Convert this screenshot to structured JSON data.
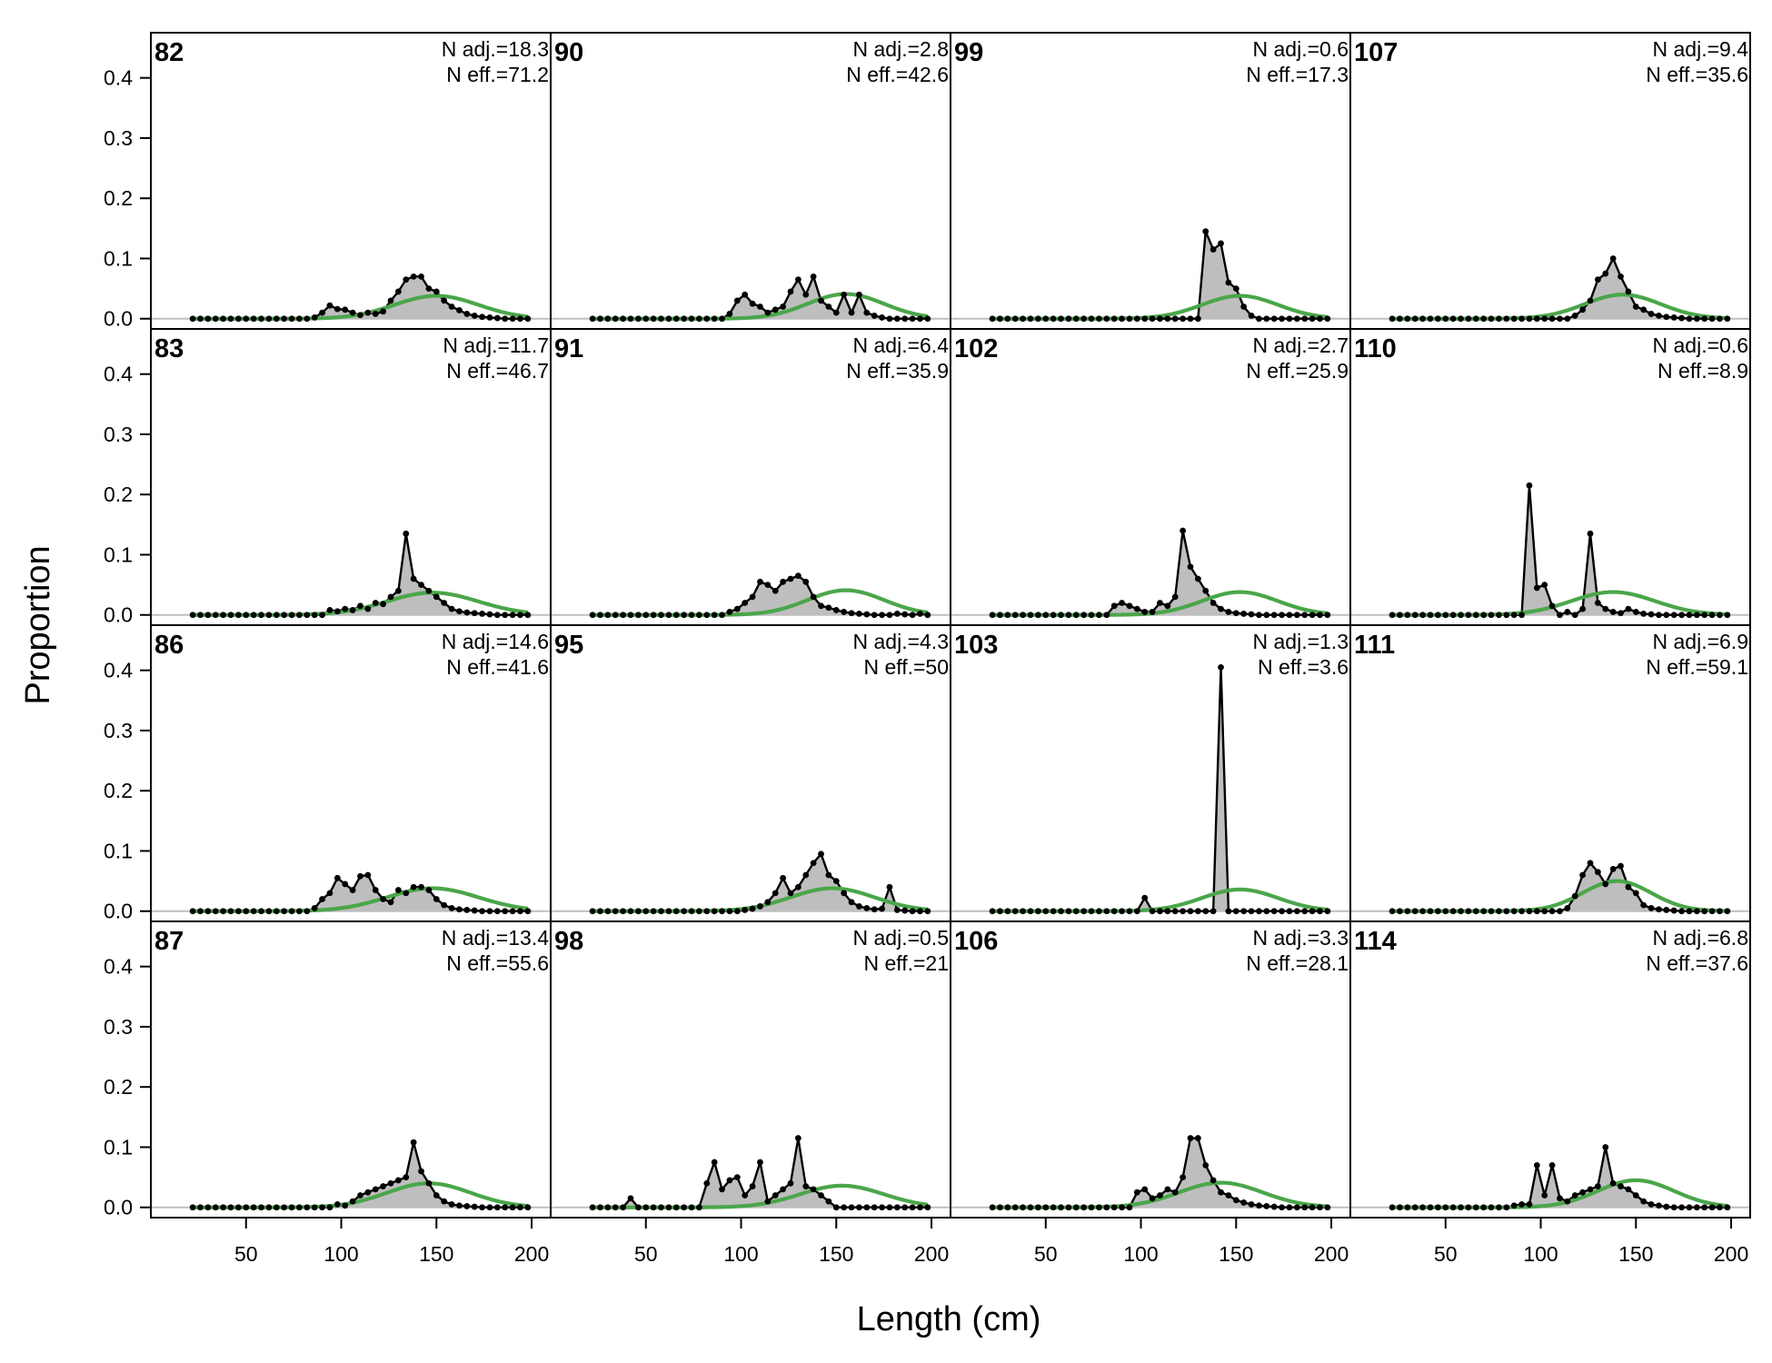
{
  "chart_data": {
    "type": "area",
    "xlabel": "Length (cm)",
    "ylabel": "Proportion",
    "xlim": [
      0,
      210
    ],
    "ylim": [
      -0.017,
      0.475
    ],
    "xticks": [
      50,
      100,
      150,
      200
    ],
    "yticks": [
      0.0,
      0.1,
      0.2,
      0.3,
      0.4
    ],
    "layout": {
      "rows": 4,
      "cols": 4,
      "order": "column-major"
    },
    "colors": {
      "observed_fill": "#bebebe",
      "observed_line": "#000000",
      "expected": "#4aa64a",
      "zero_line": "#bfbfbf"
    },
    "x": [
      22,
      26,
      30,
      34,
      38,
      42,
      46,
      50,
      54,
      58,
      62,
      66,
      70,
      74,
      78,
      82,
      86,
      90,
      94,
      98,
      102,
      106,
      110,
      114,
      118,
      122,
      126,
      130,
      134,
      138,
      142,
      146,
      150,
      154,
      158,
      162,
      166,
      170,
      174,
      178,
      182,
      186,
      190,
      194,
      198
    ],
    "panels": [
      {
        "label": "82",
        "n_adj": "N adj.=18.3",
        "n_eff": "N eff.=71.2",
        "observed": [
          0,
          0,
          0,
          0,
          0,
          0,
          0,
          0,
          0,
          0,
          0,
          0,
          0,
          0,
          0,
          0,
          0.002,
          0.01,
          0.022,
          0.016,
          0.015,
          0.01,
          0.006,
          0.01,
          0.008,
          0.012,
          0.03,
          0.045,
          0.065,
          0.07,
          0.07,
          0.05,
          0.045,
          0.03,
          0.02,
          0.014,
          0.008,
          0.005,
          0.003,
          0.002,
          0.001,
          0,
          0,
          0,
          0
        ],
        "expected": {
          "mu": 150,
          "sd": 22,
          "peak": 0.038
        }
      },
      {
        "label": "83",
        "n_adj": "N adj.=11.7",
        "n_eff": "N eff.=46.7",
        "observed": [
          0,
          0,
          0,
          0,
          0,
          0,
          0,
          0,
          0,
          0,
          0,
          0,
          0,
          0,
          0,
          0,
          0,
          0,
          0.008,
          0.006,
          0.01,
          0.008,
          0.015,
          0.01,
          0.02,
          0.018,
          0.03,
          0.04,
          0.135,
          0.06,
          0.05,
          0.04,
          0.03,
          0.02,
          0.01,
          0.006,
          0.004,
          0.003,
          0.002,
          0.001,
          0,
          0,
          0,
          0,
          0
        ],
        "expected": {
          "mu": 148,
          "sd": 24,
          "peak": 0.037
        }
      },
      {
        "label": "86",
        "n_adj": "N adj.=14.6",
        "n_eff": "N eff.=41.6",
        "observed": [
          0,
          0,
          0,
          0,
          0,
          0,
          0,
          0,
          0,
          0,
          0,
          0,
          0,
          0,
          0,
          0,
          0.005,
          0.02,
          0.03,
          0.055,
          0.045,
          0.035,
          0.058,
          0.06,
          0.035,
          0.02,
          0.015,
          0.035,
          0.03,
          0.04,
          0.04,
          0.035,
          0.02,
          0.01,
          0.005,
          0.003,
          0.002,
          0.001,
          0,
          0,
          0,
          0,
          0,
          0,
          0
        ],
        "expected": {
          "mu": 148,
          "sd": 24,
          "peak": 0.038
        }
      },
      {
        "label": "87",
        "n_adj": "N adj.=13.4",
        "n_eff": "N eff.=55.6",
        "observed": [
          0,
          0,
          0,
          0,
          0,
          0,
          0,
          0,
          0,
          0,
          0,
          0,
          0,
          0,
          0,
          0,
          0,
          0,
          0,
          0.005,
          0.003,
          0.01,
          0.02,
          0.025,
          0.03,
          0.035,
          0.04,
          0.045,
          0.05,
          0.108,
          0.06,
          0.04,
          0.02,
          0.01,
          0.005,
          0.003,
          0.002,
          0.001,
          0,
          0,
          0,
          0,
          0,
          0,
          0
        ],
        "expected": {
          "mu": 146,
          "sd": 22,
          "peak": 0.04
        }
      },
      {
        "label": "90",
        "n_adj": "N adj.=2.8",
        "n_eff": "N eff.=42.6",
        "observed": [
          0,
          0,
          0,
          0,
          0,
          0,
          0,
          0,
          0,
          0,
          0,
          0,
          0,
          0,
          0,
          0,
          0,
          0,
          0.008,
          0.03,
          0.04,
          0.025,
          0.02,
          0.01,
          0.015,
          0.02,
          0.045,
          0.065,
          0.04,
          0.07,
          0.03,
          0.02,
          0.01,
          0.04,
          0.01,
          0.04,
          0.01,
          0.005,
          0.002,
          0,
          0,
          0,
          0,
          0,
          0
        ],
        "expected": {
          "mu": 155,
          "sd": 20,
          "peak": 0.041
        }
      },
      {
        "label": "91",
        "n_adj": "N adj.=6.4",
        "n_eff": "N eff.=35.9",
        "observed": [
          0,
          0,
          0,
          0,
          0,
          0,
          0,
          0,
          0,
          0,
          0,
          0,
          0,
          0,
          0,
          0,
          0,
          0,
          0.005,
          0.01,
          0.02,
          0.03,
          0.055,
          0.05,
          0.04,
          0.055,
          0.06,
          0.065,
          0.055,
          0.03,
          0.015,
          0.012,
          0.008,
          0.005,
          0.003,
          0.002,
          0.001,
          0,
          0,
          0,
          0.002,
          0.001,
          0,
          0.002,
          0
        ],
        "expected": {
          "mu": 155,
          "sd": 20,
          "peak": 0.041
        }
      },
      {
        "label": "95",
        "n_adj": "N adj.=4.3",
        "n_eff": "N eff.=50",
        "observed": [
          0,
          0,
          0,
          0,
          0,
          0,
          0,
          0,
          0,
          0,
          0,
          0,
          0,
          0,
          0,
          0,
          0,
          0,
          0,
          0,
          0.002,
          0.004,
          0.008,
          0.015,
          0.03,
          0.055,
          0.03,
          0.04,
          0.06,
          0.08,
          0.095,
          0.06,
          0.05,
          0.03,
          0.015,
          0.008,
          0.005,
          0.003,
          0.004,
          0.04,
          0.002,
          0.001,
          0,
          0,
          0
        ],
        "expected": {
          "mu": 148,
          "sd": 22,
          "peak": 0.038
        }
      },
      {
        "label": "98",
        "n_adj": "N adj.=0.5",
        "n_eff": "N eff.=21",
        "observed": [
          0,
          0,
          0,
          0,
          0,
          0.015,
          0,
          0,
          0,
          0,
          0,
          0,
          0,
          0,
          0,
          0.04,
          0.075,
          0.03,
          0.045,
          0.05,
          0.02,
          0.035,
          0.075,
          0.01,
          0.02,
          0.03,
          0.04,
          0.115,
          0.035,
          0.03,
          0.02,
          0.01,
          0,
          0,
          0,
          0,
          0,
          0,
          0,
          0,
          0,
          0,
          0,
          0,
          0
        ],
        "expected": {
          "mu": 153,
          "sd": 22,
          "peak": 0.036
        }
      },
      {
        "label": "99",
        "n_adj": "N adj.=0.6",
        "n_eff": "N eff.=17.3",
        "observed": [
          0,
          0,
          0,
          0,
          0,
          0,
          0,
          0,
          0,
          0,
          0,
          0,
          0,
          0,
          0,
          0,
          0,
          0,
          0,
          0,
          0,
          0,
          0,
          0,
          0,
          0,
          0,
          0,
          0.145,
          0.115,
          0.125,
          0.06,
          0.05,
          0.02,
          0.005,
          0,
          0,
          0,
          0,
          0,
          0,
          0,
          0,
          0,
          0
        ],
        "expected": {
          "mu": 152,
          "sd": 20,
          "peak": 0.038
        }
      },
      {
        "label": "102",
        "n_adj": "N adj.=2.7",
        "n_eff": "N eff.=25.9",
        "observed": [
          0,
          0,
          0,
          0,
          0,
          0,
          0,
          0,
          0,
          0,
          0,
          0,
          0,
          0,
          0,
          0,
          0.015,
          0.02,
          0.015,
          0.01,
          0.005,
          0.005,
          0.02,
          0.015,
          0.03,
          0.14,
          0.08,
          0.06,
          0.04,
          0.02,
          0.01,
          0.005,
          0.003,
          0.002,
          0.001,
          0,
          0,
          0,
          0,
          0,
          0,
          0,
          0,
          0,
          0
        ],
        "expected": {
          "mu": 152,
          "sd": 20,
          "peak": 0.038
        }
      },
      {
        "label": "103",
        "n_adj": "N adj.=1.3",
        "n_eff": "N eff.=3.6",
        "observed": [
          0,
          0,
          0,
          0,
          0,
          0,
          0,
          0,
          0,
          0,
          0,
          0,
          0,
          0,
          0,
          0,
          0,
          0,
          0,
          0,
          0.022,
          0,
          0,
          0,
          0,
          0,
          0,
          0,
          0,
          0,
          0.405,
          0,
          0,
          0,
          0,
          0,
          0,
          0,
          0,
          0,
          0,
          0,
          0,
          0,
          0
        ],
        "expected": {
          "mu": 152,
          "sd": 20,
          "peak": 0.036
        }
      },
      {
        "label": "106",
        "n_adj": "N adj.=3.3",
        "n_eff": "N eff.=28.1",
        "observed": [
          0,
          0,
          0,
          0,
          0,
          0,
          0,
          0,
          0,
          0,
          0,
          0,
          0,
          0,
          0,
          0,
          0,
          0,
          0,
          0.025,
          0.03,
          0.015,
          0.02,
          0.03,
          0.025,
          0.05,
          0.115,
          0.115,
          0.07,
          0.045,
          0.025,
          0.02,
          0.012,
          0.008,
          0.005,
          0.003,
          0.002,
          0.001,
          0,
          0,
          0,
          0,
          0,
          0,
          0
        ],
        "expected": {
          "mu": 142,
          "sd": 22,
          "peak": 0.041
        }
      },
      {
        "label": "107",
        "n_adj": "N adj.=9.4",
        "n_eff": "N eff.=35.6",
        "observed": [
          0,
          0,
          0,
          0,
          0,
          0,
          0,
          0,
          0,
          0,
          0,
          0,
          0,
          0,
          0,
          0,
          0,
          0,
          0,
          0,
          0,
          0,
          0,
          0,
          0.005,
          0.015,
          0.03,
          0.065,
          0.075,
          0.1,
          0.07,
          0.045,
          0.02,
          0.015,
          0.008,
          0.005,
          0.003,
          0.002,
          0.001,
          0,
          0,
          0,
          0,
          0,
          0
        ],
        "expected": {
          "mu": 143,
          "sd": 20,
          "peak": 0.04
        }
      },
      {
        "label": "110",
        "n_adj": "N adj.=0.6",
        "n_eff": "N eff.=8.9",
        "observed": [
          0,
          0,
          0,
          0,
          0,
          0,
          0,
          0,
          0,
          0,
          0,
          0,
          0,
          0,
          0,
          0,
          0,
          0,
          0.215,
          0.045,
          0.05,
          0.015,
          0,
          0.005,
          0,
          0.01,
          0.135,
          0.02,
          0.01,
          0.005,
          0.003,
          0.01,
          0.005,
          0.002,
          0.001,
          0,
          0,
          0,
          0,
          0,
          0,
          0,
          0,
          0,
          0
        ],
        "expected": {
          "mu": 138,
          "sd": 22,
          "peak": 0.038
        }
      },
      {
        "label": "111",
        "n_adj": "N adj.=6.9",
        "n_eff": "N eff.=59.1",
        "observed": [
          0,
          0,
          0,
          0,
          0,
          0,
          0,
          0,
          0,
          0,
          0,
          0,
          0,
          0,
          0,
          0,
          0,
          0,
          0,
          0,
          0,
          0,
          0,
          0.005,
          0.025,
          0.06,
          0.08,
          0.065,
          0.045,
          0.07,
          0.075,
          0.04,
          0.03,
          0.01,
          0.005,
          0.003,
          0.002,
          0.001,
          0,
          0,
          0,
          0,
          0,
          0,
          0
        ],
        "expected": {
          "mu": 140,
          "sd": 18,
          "peak": 0.05
        }
      },
      {
        "label": "114",
        "n_adj": "N adj.=6.8",
        "n_eff": "N eff.=37.6",
        "observed": [
          0,
          0,
          0,
          0,
          0,
          0,
          0,
          0,
          0,
          0,
          0,
          0,
          0,
          0,
          0,
          0,
          0.003,
          0.005,
          0.005,
          0.07,
          0.02,
          0.07,
          0.015,
          0.01,
          0.02,
          0.025,
          0.03,
          0.035,
          0.1,
          0.04,
          0.035,
          0.03,
          0.02,
          0.01,
          0.005,
          0.003,
          0.001,
          0,
          0,
          0,
          0,
          0,
          0,
          0,
          0
        ],
        "expected": {
          "mu": 150,
          "sd": 20,
          "peak": 0.045
        }
      }
    ]
  }
}
